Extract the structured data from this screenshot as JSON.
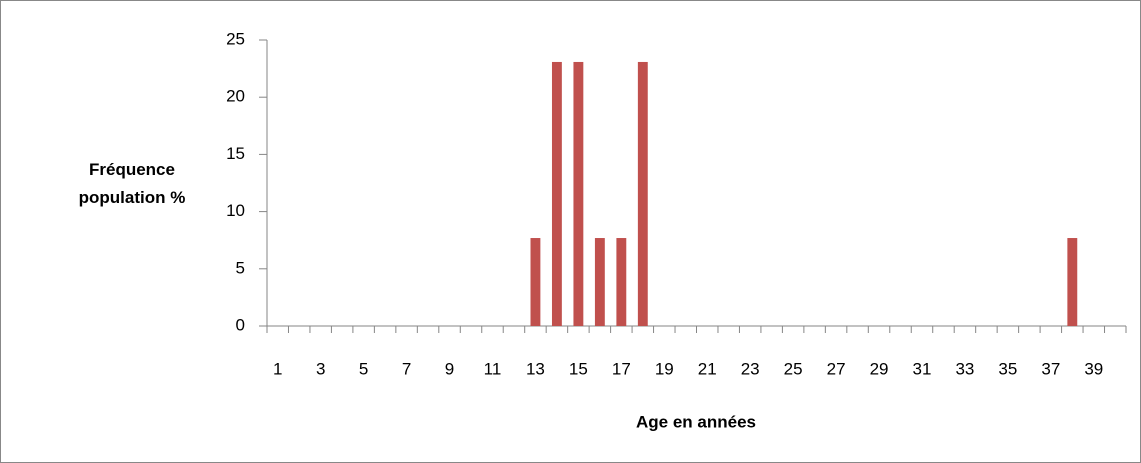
{
  "chart_data": {
    "type": "bar",
    "x_label": "Age en années",
    "y_label": "Fréquence population %",
    "categories": [
      "1",
      null,
      "3",
      null,
      "5",
      null,
      "7",
      null,
      "9",
      null,
      "11",
      null,
      "13",
      null,
      "15",
      null,
      "17",
      null,
      "19",
      null,
      "21",
      null,
      "23",
      null,
      "25",
      null,
      "27",
      null,
      "29",
      null,
      "31",
      null,
      "33",
      null,
      "35",
      null,
      "37",
      null,
      "39",
      null
    ],
    "values": [
      0,
      0,
      0,
      0,
      0,
      0,
      0,
      0,
      0,
      0,
      0,
      0,
      7.69,
      23.08,
      23.08,
      7.69,
      7.69,
      23.08,
      0,
      0,
      0,
      0,
      0,
      0,
      0,
      0,
      0,
      0,
      0,
      0,
      0,
      0,
      0,
      0,
      0,
      0,
      0,
      7.69,
      0,
      0
    ],
    "color": "#c0504d",
    "ylim": [
      0,
      25
    ],
    "yticks": [
      0,
      5,
      10,
      15,
      20,
      25
    ],
    "grid": false
  }
}
